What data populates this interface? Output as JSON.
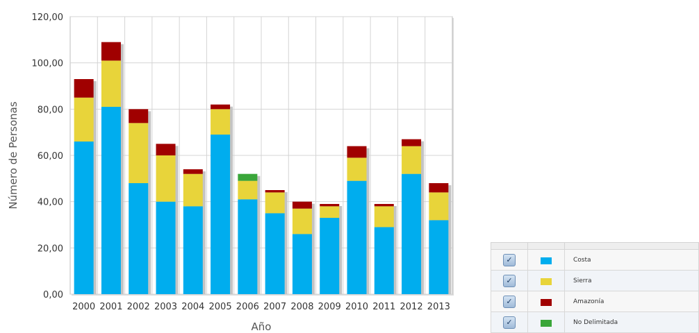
{
  "chart_data": {
    "type": "bar",
    "stacked": true,
    "categories": [
      "2000",
      "2001",
      "2002",
      "2003",
      "2004",
      "2005",
      "2006",
      "2007",
      "2008",
      "2009",
      "2010",
      "2011",
      "2012",
      "2013"
    ],
    "series": [
      {
        "name": "Costa",
        "color": "#00adee",
        "values": [
          66,
          81,
          48,
          40,
          38,
          69,
          41,
          35,
          26,
          33,
          49,
          29,
          52,
          32
        ]
      },
      {
        "name": "Sierra",
        "color": "#e8d43a",
        "values": [
          19,
          20,
          26,
          20,
          14,
          11,
          8,
          9,
          11,
          5,
          10,
          9,
          12,
          12
        ]
      },
      {
        "name": "Amazonía",
        "color": "#a00000",
        "values": [
          8,
          8,
          6,
          5,
          2,
          2,
          0,
          1,
          3,
          1,
          5,
          1,
          3,
          4
        ]
      },
      {
        "name": "No Delimitada",
        "color": "#3aa63a",
        "values": [
          0,
          0,
          0,
          0,
          0,
          0,
          3,
          0,
          0,
          0,
          0,
          0,
          0,
          0
        ]
      }
    ],
    "xlabel": "Año",
    "ylabel": "Número de Personas",
    "ylim": [
      0,
      120
    ],
    "yticks": [
      "0,00",
      "20,00",
      "40,00",
      "60,00",
      "80,00",
      "100,00",
      "120,00"
    ],
    "grid": true,
    "legend_placement": "bottom-right"
  },
  "legend": {
    "items": [
      {
        "label": "Costa",
        "color": "#00adee",
        "checked": true
      },
      {
        "label": "Sierra",
        "color": "#e8d43a",
        "checked": true
      },
      {
        "label": "Amazonía",
        "color": "#a00000",
        "checked": true
      },
      {
        "label": "No Delimitada",
        "color": "#3aa63a",
        "checked": true
      }
    ],
    "check_glyph": "✓"
  }
}
